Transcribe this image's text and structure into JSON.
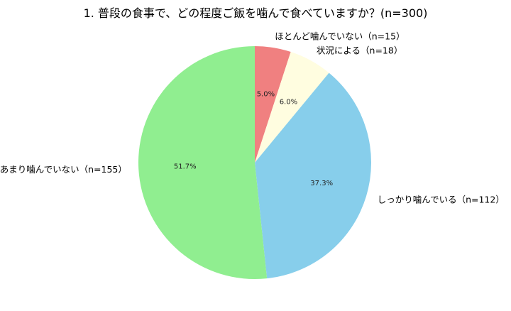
{
  "chart_data": {
    "type": "pie",
    "title": "1. 普段の食事で、どの程度ご飯を噛んで食べていますか？(n=300)",
    "start_angle_deg": 90,
    "direction": "clockwise",
    "slices": [
      {
        "label": "ほとんど噛んでいない（n=15）",
        "value": 15,
        "pct": "5.0%",
        "color": "#f08080"
      },
      {
        "label": "状況による（n=18）",
        "value": 18,
        "pct": "6.0%",
        "color": "#fffde0"
      },
      {
        "label": "しっかり噛んでいる（n=112）",
        "value": 112,
        "pct": "37.3%",
        "color": "#87ceeb"
      },
      {
        "label": "あまり噛んでいない（n=155）",
        "value": 155,
        "pct": "51.7%",
        "color": "#90ee90"
      }
    ]
  }
}
